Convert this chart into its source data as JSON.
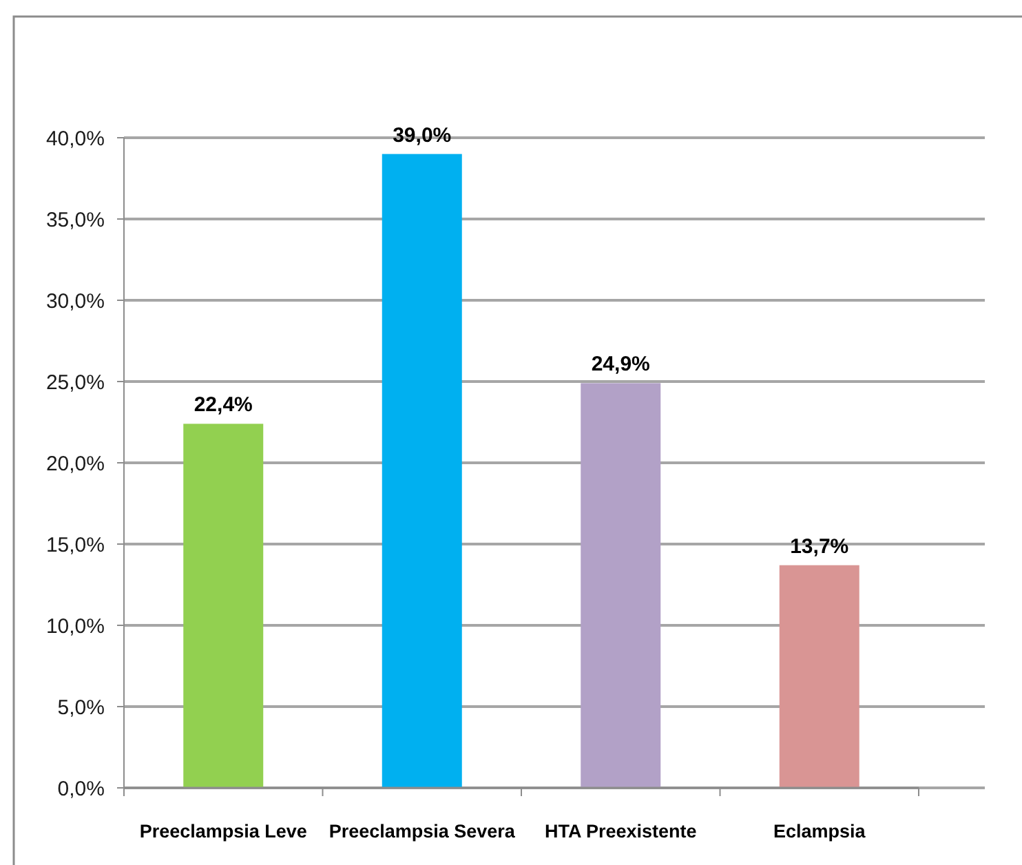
{
  "chart_data": {
    "type": "bar",
    "categories": [
      "Preeclampsia Leve",
      "Preeclampsia Severa",
      "HTA Preexistente",
      "Eclampsia"
    ],
    "values": [
      22.4,
      39.0,
      24.9,
      13.7
    ],
    "colors": [
      "#92d050",
      "#00b0f0",
      "#b2a1c7",
      "#d99594"
    ],
    "value_labels": [
      "22,4%",
      "39,0%",
      "24,9%",
      "13,7%"
    ],
    "ylim": [
      0,
      40
    ],
    "yticks": [
      {
        "value": 0,
        "label": "0,0%"
      },
      {
        "value": 5,
        "label": "5,0%"
      },
      {
        "value": 10,
        "label": "10,0%"
      },
      {
        "value": 15,
        "label": "15,0%"
      },
      {
        "value": 20,
        "label": "20,0%"
      },
      {
        "value": 25,
        "label": "25,0%"
      },
      {
        "value": 30,
        "label": "30,0%"
      },
      {
        "value": 35,
        "label": "35,0%"
      },
      {
        "value": 40,
        "label": "40,0%"
      }
    ],
    "grid": "y"
  }
}
